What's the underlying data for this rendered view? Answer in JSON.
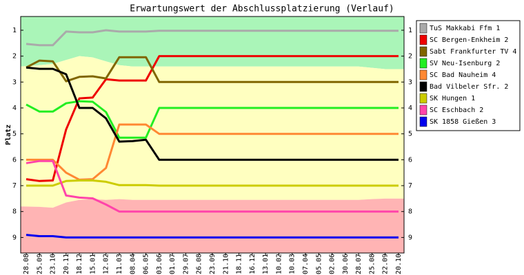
{
  "chart_data": {
    "type": "line",
    "title": "Erwartungswert der Abschlussplatzierung (Verlauf)",
    "y_label": "Platz",
    "categories": [
      "28.08",
      "25.09",
      "23.10",
      "20.11",
      "18.12",
      "15.01",
      "12.02",
      "11.03",
      "08.04",
      "06.05",
      "03.06",
      "01.07",
      "29.07",
      "26.08",
      "23.09",
      "21.10",
      "18.11",
      "16.12",
      "13.01",
      "10.02",
      "10.03",
      "07.04",
      "05.05",
      "02.06",
      "30.06",
      "28.07",
      "25.08",
      "22.09",
      "20.10"
    ],
    "ylim": [
      9.6,
      0.47
    ],
    "yticks": [
      1,
      2,
      3,
      4,
      5,
      6,
      7,
      8,
      9
    ],
    "zones": {
      "colors": [
        "#aaf5b8",
        "#ffffc0",
        "#ffb4b4"
      ],
      "bounds": [
        [
          2.4,
          2.35,
          2.3,
          2.15,
          2.0,
          2.05,
          2.2,
          2.35,
          2.4,
          2.4,
          2.4,
          2.4,
          2.4,
          2.4,
          2.4,
          2.4,
          2.4,
          2.4,
          2.4,
          2.4,
          2.4,
          2.4,
          2.4,
          2.4,
          2.4,
          2.4,
          2.45,
          2.5,
          2.5
        ],
        [
          7.8,
          7.82,
          7.85,
          7.65,
          7.55,
          7.52,
          7.55,
          7.52,
          7.55,
          7.55,
          7.55,
          7.55,
          7.55,
          7.55,
          7.55,
          7.55,
          7.55,
          7.55,
          7.55,
          7.55,
          7.55,
          7.55,
          7.55,
          7.55,
          7.55,
          7.55,
          7.52,
          7.5,
          7.5
        ]
      ]
    },
    "series": [
      {
        "name": "TuS Makkabi Ffm 1",
        "color": "#aaaaaa",
        "values": [
          1.53,
          1.58,
          1.58,
          1.05,
          1.08,
          1.08,
          1.0,
          1.05,
          1.05,
          1.05,
          1.02,
          1.02,
          1.02,
          1.02,
          1.02,
          1.02,
          1.02,
          1.02,
          1.02,
          1.02,
          1.02,
          1.02,
          1.02,
          1.02,
          1.02,
          1.02,
          1.02,
          1.02,
          1.02
        ]
      },
      {
        "name": "SC Bergen-Enkheim 2",
        "color": "#ee0000",
        "values": [
          6.75,
          6.82,
          6.8,
          4.83,
          3.63,
          3.6,
          2.89,
          2.94,
          2.94,
          2.94,
          2.0,
          2,
          2,
          2,
          2,
          2,
          2,
          2,
          2,
          2,
          2,
          2,
          2,
          2,
          2,
          2,
          2,
          2,
          2
        ]
      },
      {
        "name": "Sabt Frankfurter TV 4",
        "color": "#806600",
        "values": [
          2.44,
          2.17,
          2.2,
          2.97,
          2.8,
          2.78,
          2.86,
          2.04,
          2.04,
          2.04,
          3.0,
          3,
          3,
          3,
          3,
          3,
          3,
          3,
          3,
          3,
          3,
          3,
          3,
          3,
          3,
          3,
          3,
          3,
          3
        ]
      },
      {
        "name": "SV Neu-Isenburg 2",
        "color": "#22ee22",
        "values": [
          3.87,
          4.14,
          4.14,
          3.82,
          3.74,
          3.76,
          4.16,
          5.15,
          5.15,
          5.15,
          4.0,
          4,
          4,
          4,
          4,
          4,
          4,
          4,
          4,
          4,
          4,
          4,
          4,
          4,
          4,
          4,
          4,
          4,
          4
        ]
      },
      {
        "name": "SC Bad Nauheim 4",
        "color": "#ff8833",
        "values": [
          6.0,
          6.0,
          6.0,
          6.5,
          6.77,
          6.75,
          6.32,
          4.64,
          4.64,
          4.64,
          5.0,
          5,
          5,
          5,
          5,
          5,
          5,
          5,
          5,
          5,
          5,
          5,
          5,
          5,
          5,
          5,
          5,
          5,
          5
        ]
      },
      {
        "name": "Bad Vilbeler Sfr. 2",
        "color": "#000000",
        "values": [
          2.44,
          2.49,
          2.49,
          2.7,
          4.0,
          4.0,
          4.4,
          5.3,
          5.28,
          5.23,
          6.0,
          6,
          6,
          6,
          6,
          6,
          6,
          6,
          6,
          6,
          6,
          6,
          6,
          6,
          6,
          6,
          6,
          6,
          6
        ]
      },
      {
        "name": "SK Hungen 1",
        "color": "#cccc00",
        "values": [
          7.0,
          7.0,
          7.0,
          6.82,
          6.8,
          6.8,
          6.85,
          6.98,
          6.98,
          6.98,
          7.0,
          7,
          7,
          7,
          7,
          7,
          7,
          7,
          7,
          7,
          7,
          7,
          7,
          7,
          7,
          7,
          7,
          7,
          7
        ]
      },
      {
        "name": "SC Eschbach 2",
        "color": "#ff44aa",
        "values": [
          6.13,
          6.05,
          6.05,
          7.38,
          7.46,
          7.49,
          7.73,
          8.0,
          8,
          8,
          8,
          8,
          8,
          8,
          8,
          8,
          8,
          8,
          8,
          8,
          8,
          8,
          8,
          8,
          8,
          8,
          8,
          8,
          8
        ]
      },
      {
        "name": "SK 1858 Gießen 3",
        "color": "#0000ee",
        "values": [
          8.9,
          8.95,
          8.95,
          9.0,
          9,
          9,
          9,
          9,
          9,
          9,
          9,
          9,
          9,
          9,
          9,
          9,
          9,
          9,
          9,
          9,
          9,
          9,
          9,
          9,
          9,
          9,
          9,
          9,
          9
        ]
      }
    ]
  }
}
